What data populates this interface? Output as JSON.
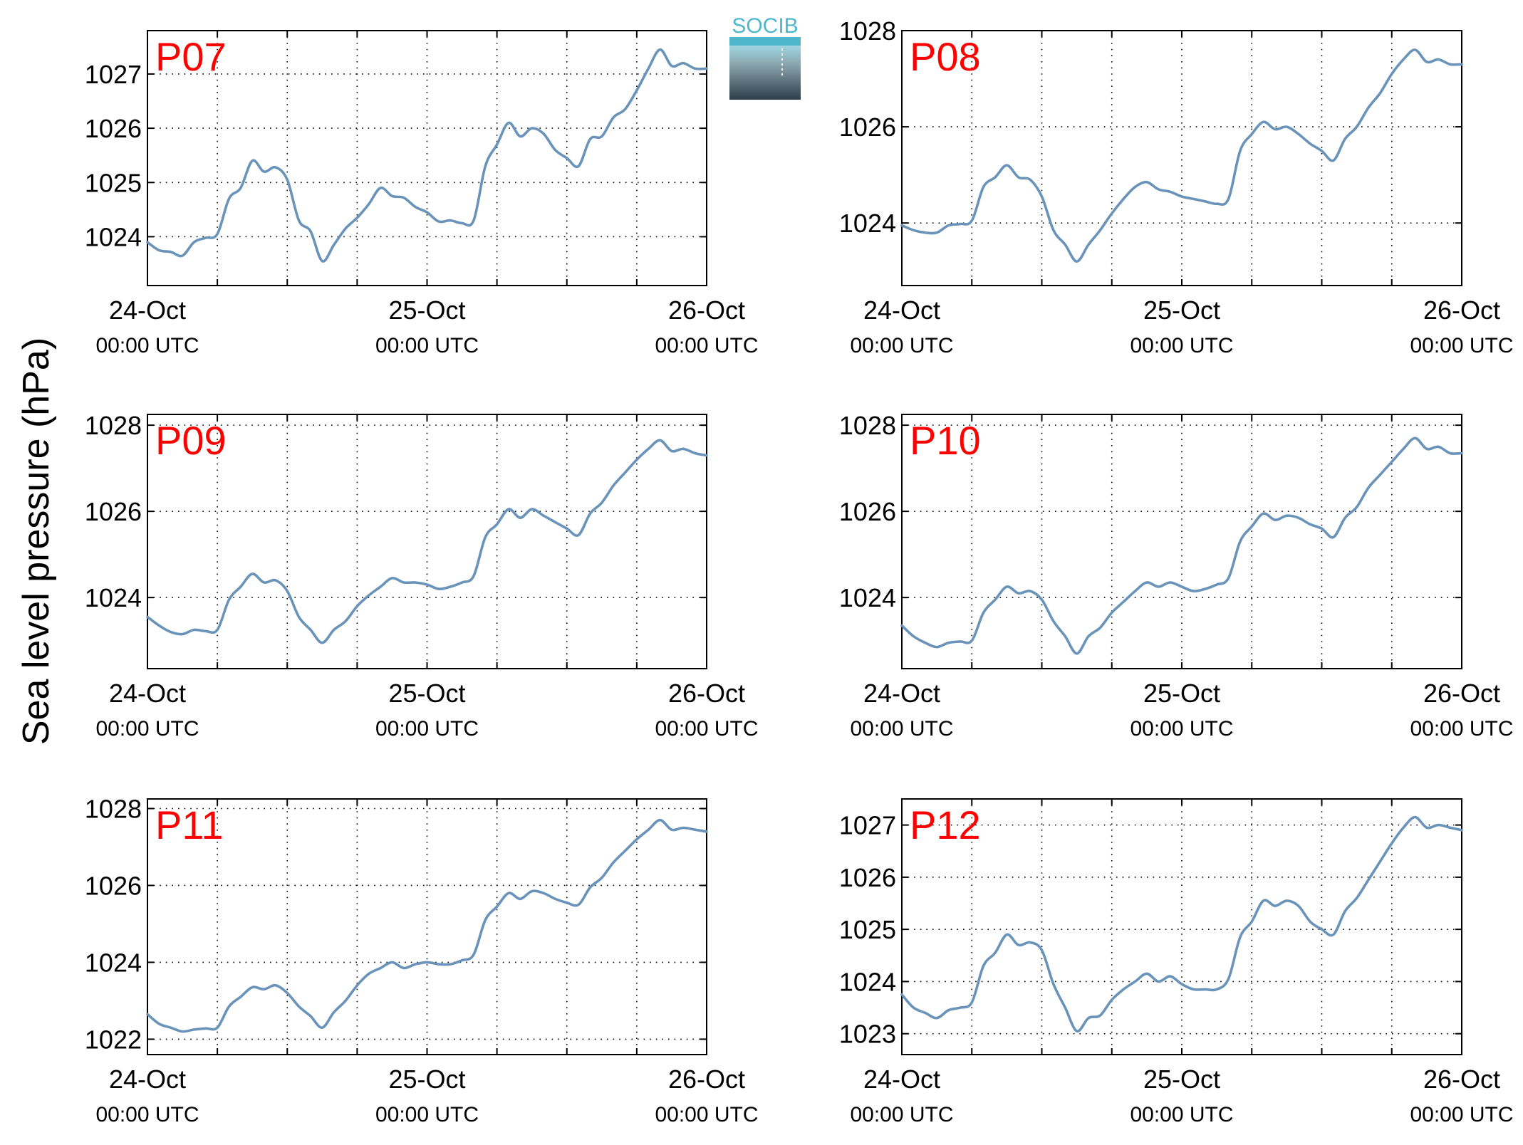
{
  "figure": {
    "ylabel": "Sea level pressure (hPa)",
    "logo_text": "SOCIB",
    "line_color": "#6a93b9",
    "label_color": "#ff0000",
    "logo_color": "#4fb6cc"
  },
  "chart_data": [
    {
      "type": "line",
      "title": "P07",
      "x_ticks": [
        {
          "main": "24-Oct",
          "sub": "00:00 UTC"
        },
        {
          "main": "25-Oct",
          "sub": "00:00 UTC"
        },
        {
          "main": "26-Oct",
          "sub": "00:00 UTC"
        }
      ],
      "xlim": [
        0,
        48
      ],
      "ylim": [
        1023.1,
        1027.8
      ],
      "yticks": [
        1024,
        1025,
        1026,
        1027
      ],
      "grid": true,
      "series": [
        {
          "x": [
            0,
            1,
            2,
            3,
            4,
            5,
            6,
            7,
            8,
            9,
            10,
            11,
            12,
            13,
            14,
            15,
            16,
            17,
            18,
            19,
            20,
            21,
            22,
            23,
            24,
            25,
            26,
            27,
            28,
            29,
            30,
            31,
            32,
            33,
            34,
            35,
            36,
            37,
            38,
            39,
            40,
            41,
            42,
            43,
            44,
            45,
            46,
            47,
            48
          ],
          "values": [
            1023.9,
            1023.75,
            1023.72,
            1023.65,
            1023.9,
            1023.98,
            1024.05,
            1024.7,
            1024.9,
            1025.4,
            1025.2,
            1025.28,
            1025.05,
            1024.3,
            1024.1,
            1023.55,
            1023.85,
            1024.15,
            1024.35,
            1024.6,
            1024.9,
            1024.75,
            1024.72,
            1024.55,
            1024.45,
            1024.28,
            1024.3,
            1024.25,
            1024.3,
            1025.3,
            1025.7,
            1026.1,
            1025.85,
            1026.0,
            1025.9,
            1025.6,
            1025.45,
            1025.3,
            1025.8,
            1025.85,
            1026.2,
            1026.35,
            1026.7,
            1027.1,
            1027.45,
            1027.15,
            1027.2,
            1027.1,
            1027.1
          ]
        }
      ]
    },
    {
      "type": "line",
      "title": "P08",
      "x_ticks": [
        {
          "main": "24-Oct",
          "sub": "00:00 UTC"
        },
        {
          "main": "25-Oct",
          "sub": "00:00 UTC"
        },
        {
          "main": "26-Oct",
          "sub": "00:00 UTC"
        }
      ],
      "xlim": [
        0,
        48
      ],
      "ylim": [
        1022.7,
        1028.0
      ],
      "yticks": [
        1024,
        1026,
        1028
      ],
      "grid": true,
      "series": [
        {
          "x": [
            0,
            1,
            2,
            3,
            4,
            5,
            6,
            7,
            8,
            9,
            10,
            11,
            12,
            13,
            14,
            15,
            16,
            17,
            18,
            19,
            20,
            21,
            22,
            23,
            24,
            25,
            26,
            27,
            28,
            29,
            30,
            31,
            32,
            33,
            34,
            35,
            36,
            37,
            38,
            39,
            40,
            41,
            42,
            43,
            44,
            45,
            46,
            47,
            48
          ],
          "values": [
            1023.95,
            1023.85,
            1023.8,
            1023.8,
            1023.95,
            1023.98,
            1024.05,
            1024.75,
            1024.95,
            1025.2,
            1024.95,
            1024.9,
            1024.55,
            1023.85,
            1023.55,
            1023.2,
            1023.55,
            1023.85,
            1024.2,
            1024.5,
            1024.75,
            1024.85,
            1024.7,
            1024.65,
            1024.55,
            1024.5,
            1024.45,
            1024.4,
            1024.5,
            1025.5,
            1025.85,
            1026.1,
            1025.95,
            1026.0,
            1025.85,
            1025.65,
            1025.5,
            1025.3,
            1025.75,
            1026.0,
            1026.4,
            1026.7,
            1027.1,
            1027.4,
            1027.6,
            1027.35,
            1027.4,
            1027.3,
            1027.3
          ]
        }
      ]
    },
    {
      "type": "line",
      "title": "P09",
      "x_ticks": [
        {
          "main": "24-Oct",
          "sub": "00:00 UTC"
        },
        {
          "main": "25-Oct",
          "sub": "00:00 UTC"
        },
        {
          "main": "26-Oct",
          "sub": "00:00 UTC"
        }
      ],
      "xlim": [
        0,
        48
      ],
      "ylim": [
        1022.35,
        1028.25
      ],
      "yticks": [
        1024,
        1026,
        1028
      ],
      "grid": true,
      "series": [
        {
          "x": [
            0,
            1,
            2,
            3,
            4,
            5,
            6,
            7,
            8,
            9,
            10,
            11,
            12,
            13,
            14,
            15,
            16,
            17,
            18,
            19,
            20,
            21,
            22,
            23,
            24,
            25,
            26,
            27,
            28,
            29,
            30,
            31,
            32,
            33,
            34,
            35,
            36,
            37,
            38,
            39,
            40,
            41,
            42,
            43,
            44,
            45,
            46,
            47,
            48
          ],
          "values": [
            1023.55,
            1023.35,
            1023.2,
            1023.15,
            1023.25,
            1023.22,
            1023.25,
            1023.95,
            1024.25,
            1024.55,
            1024.35,
            1024.4,
            1024.15,
            1023.55,
            1023.25,
            1022.95,
            1023.25,
            1023.45,
            1023.8,
            1024.05,
            1024.25,
            1024.45,
            1024.35,
            1024.35,
            1024.3,
            1024.2,
            1024.25,
            1024.35,
            1024.5,
            1025.4,
            1025.7,
            1026.05,
            1025.85,
            1026.05,
            1025.9,
            1025.75,
            1025.6,
            1025.45,
            1025.95,
            1026.2,
            1026.6,
            1026.9,
            1027.2,
            1027.45,
            1027.65,
            1027.4,
            1027.45,
            1027.35,
            1027.3
          ]
        }
      ]
    },
    {
      "type": "line",
      "title": "P10",
      "x_ticks": [
        {
          "main": "24-Oct",
          "sub": "00:00 UTC"
        },
        {
          "main": "25-Oct",
          "sub": "00:00 UTC"
        },
        {
          "main": "26-Oct",
          "sub": "00:00 UTC"
        }
      ],
      "xlim": [
        0,
        48
      ],
      "ylim": [
        1022.35,
        1028.25
      ],
      "yticks": [
        1024,
        1026,
        1028
      ],
      "grid": true,
      "series": [
        {
          "x": [
            0,
            1,
            2,
            3,
            4,
            5,
            6,
            7,
            8,
            9,
            10,
            11,
            12,
            13,
            14,
            15,
            16,
            17,
            18,
            19,
            20,
            21,
            22,
            23,
            24,
            25,
            26,
            27,
            28,
            29,
            30,
            31,
            32,
            33,
            34,
            35,
            36,
            37,
            38,
            39,
            40,
            41,
            42,
            43,
            44,
            45,
            46,
            47,
            48
          ],
          "values": [
            1023.35,
            1023.1,
            1022.95,
            1022.85,
            1022.95,
            1022.98,
            1023.0,
            1023.65,
            1023.95,
            1024.25,
            1024.1,
            1024.15,
            1023.95,
            1023.45,
            1023.1,
            1022.7,
            1023.1,
            1023.3,
            1023.65,
            1023.9,
            1024.15,
            1024.35,
            1024.25,
            1024.35,
            1024.25,
            1024.15,
            1024.2,
            1024.3,
            1024.45,
            1025.3,
            1025.65,
            1025.95,
            1025.8,
            1025.9,
            1025.85,
            1025.7,
            1025.6,
            1025.4,
            1025.85,
            1026.1,
            1026.55,
            1026.85,
            1027.15,
            1027.45,
            1027.7,
            1027.45,
            1027.5,
            1027.35,
            1027.35
          ]
        }
      ]
    },
    {
      "type": "line",
      "title": "P11",
      "x_ticks": [
        {
          "main": "24-Oct",
          "sub": "00:00 UTC"
        },
        {
          "main": "25-Oct",
          "sub": "00:00 UTC"
        },
        {
          "main": "26-Oct",
          "sub": "00:00 UTC"
        }
      ],
      "xlim": [
        0,
        48
      ],
      "ylim": [
        1021.6,
        1028.25
      ],
      "yticks": [
        1022,
        1024,
        1026,
        1028
      ],
      "grid": true,
      "series": [
        {
          "x": [
            0,
            1,
            2,
            3,
            4,
            5,
            6,
            7,
            8,
            9,
            10,
            11,
            12,
            13,
            14,
            15,
            16,
            17,
            18,
            19,
            20,
            21,
            22,
            23,
            24,
            25,
            26,
            27,
            28,
            29,
            30,
            31,
            32,
            33,
            34,
            35,
            36,
            37,
            38,
            39,
            40,
            41,
            42,
            43,
            44,
            45,
            46,
            47,
            48
          ],
          "values": [
            1022.65,
            1022.4,
            1022.3,
            1022.2,
            1022.25,
            1022.28,
            1022.3,
            1022.85,
            1023.1,
            1023.35,
            1023.3,
            1023.4,
            1023.2,
            1022.85,
            1022.6,
            1022.3,
            1022.7,
            1023.0,
            1023.4,
            1023.7,
            1023.85,
            1024.0,
            1023.85,
            1023.95,
            1024.0,
            1023.95,
            1023.95,
            1024.05,
            1024.2,
            1025.1,
            1025.45,
            1025.8,
            1025.65,
            1025.85,
            1025.8,
            1025.65,
            1025.55,
            1025.5,
            1025.95,
            1026.2,
            1026.6,
            1026.9,
            1027.2,
            1027.45,
            1027.7,
            1027.45,
            1027.5,
            1027.45,
            1027.4
          ]
        }
      ]
    },
    {
      "type": "line",
      "title": "P12",
      "x_ticks": [
        {
          "main": "24-Oct",
          "sub": "00:00 UTC"
        },
        {
          "main": "25-Oct",
          "sub": "00:00 UTC"
        },
        {
          "main": "26-Oct",
          "sub": "00:00 UTC"
        }
      ],
      "xlim": [
        0,
        48
      ],
      "ylim": [
        1022.6,
        1027.5
      ],
      "yticks": [
        1023,
        1024,
        1025,
        1026,
        1027
      ],
      "grid": true,
      "series": [
        {
          "x": [
            0,
            1,
            2,
            3,
            4,
            5,
            6,
            7,
            8,
            9,
            10,
            11,
            12,
            13,
            14,
            15,
            16,
            17,
            18,
            19,
            20,
            21,
            22,
            23,
            24,
            25,
            26,
            27,
            28,
            29,
            30,
            31,
            32,
            33,
            34,
            35,
            36,
            37,
            38,
            39,
            40,
            41,
            42,
            43,
            44,
            45,
            46,
            47,
            48
          ],
          "values": [
            1023.75,
            1023.5,
            1023.4,
            1023.3,
            1023.45,
            1023.5,
            1023.6,
            1024.3,
            1024.55,
            1024.9,
            1024.7,
            1024.75,
            1024.6,
            1023.95,
            1023.5,
            1023.05,
            1023.3,
            1023.35,
            1023.65,
            1023.85,
            1024.0,
            1024.15,
            1024.0,
            1024.1,
            1023.95,
            1023.85,
            1023.85,
            1023.85,
            1024.05,
            1024.85,
            1025.15,
            1025.55,
            1025.45,
            1025.55,
            1025.45,
            1025.15,
            1025.0,
            1024.9,
            1025.35,
            1025.6,
            1025.95,
            1026.3,
            1026.65,
            1026.95,
            1027.15,
            1026.95,
            1027.0,
            1026.95,
            1026.9
          ]
        }
      ]
    }
  ]
}
